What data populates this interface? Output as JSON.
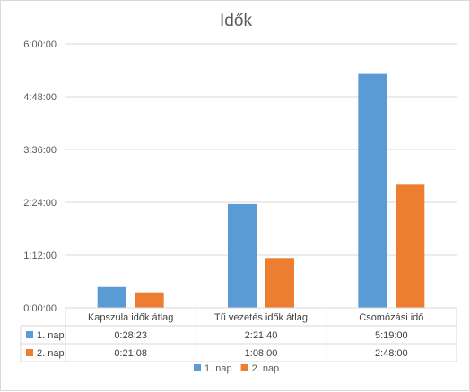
{
  "chart_data": {
    "type": "bar",
    "title": "Idők",
    "categories": [
      "Kapszula idők átlag",
      "Tű vezetés idők átlag",
      "Csomózási idő"
    ],
    "y_unit": "seconds",
    "y_ticks": [
      "0:00:00",
      "1:12:00",
      "2:24:00",
      "3:36:00",
      "4:48:00",
      "6:00:00"
    ],
    "ylim": [
      0,
      21600
    ],
    "series": [
      {
        "name": "1. nap",
        "color": "#5b9bd5",
        "values": [
          1703,
          8500,
          19140
        ],
        "labels": [
          "0:28:23",
          "2:21:40",
          "5:19:00"
        ]
      },
      {
        "name": "2. nap",
        "color": "#ed7d31",
        "values": [
          1268,
          4080,
          10080
        ],
        "labels": [
          "0:21:08",
          "1:08:00",
          "2:48:00"
        ]
      }
    ],
    "data_table": true,
    "gridlines": true,
    "legend_position": "bottom"
  }
}
